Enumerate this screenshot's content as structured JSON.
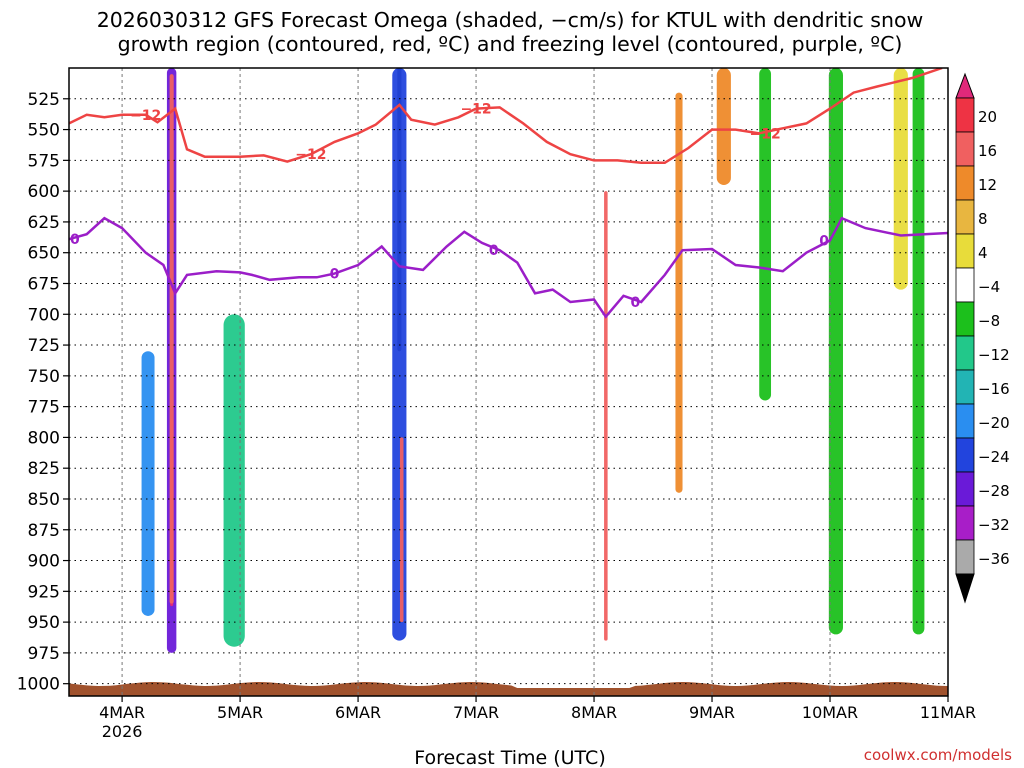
{
  "chart_data": {
    "type": "heatmap",
    "title_line1": "2026030312 GFS Forecast Omega (shaded, −cm/s) for KTUL with dendritic snow",
    "title_line2": "growth region (contoured, red, ºC) and freezing level (contoured, purple, ºC)",
    "xlabel": "Forecast Time (UTC)",
    "credit": "coolwx.com/models",
    "x_range_days": [
      3.55,
      11.0
    ],
    "x_ticks": [
      {
        "label": "4MAR",
        "day": 4
      },
      {
        "label": "5MAR",
        "day": 5
      },
      {
        "label": "6MAR",
        "day": 6
      },
      {
        "label": "7MAR",
        "day": 7
      },
      {
        "label": "8MAR",
        "day": 8
      },
      {
        "label": "9MAR",
        "day": 9
      },
      {
        "label": "10MAR",
        "day": 10
      },
      {
        "label": "11MAR",
        "day": 11
      }
    ],
    "year_label": "2026",
    "y_range_hpa": [
      500,
      1010
    ],
    "y_ticks": [
      525,
      550,
      575,
      600,
      625,
      650,
      675,
      700,
      725,
      750,
      775,
      800,
      825,
      850,
      875,
      900,
      925,
      950,
      975,
      1000
    ],
    "ground_color": "#a0522d",
    "colorbar": {
      "labels": [
        "20",
        "16",
        "12",
        "8",
        "4",
        "−4",
        "−8",
        "−12",
        "−16",
        "−20",
        "−24",
        "−28",
        "−32",
        "−36"
      ],
      "top_color": "#e0297a",
      "bottom_color": "#000000",
      "colors": [
        "#ee3344",
        "#f06060",
        "#ee8a2a",
        "#e8b640",
        "#e8dc3a",
        "#ffffff",
        "#1cc01c",
        "#22c88a",
        "#22b4b4",
        "#2a8ef0",
        "#2244dd",
        "#6a1ad8",
        "#a81ec8",
        "#aaaaaa"
      ]
    },
    "dgz_contour": {
      "color": "#ee4444",
      "label": "−12",
      "points": [
        [
          3.55,
          545
        ],
        [
          3.7,
          538
        ],
        [
          3.85,
          540
        ],
        [
          4.0,
          538
        ],
        [
          4.2,
          538
        ],
        [
          4.3,
          544
        ],
        [
          4.45,
          533
        ],
        [
          4.55,
          566
        ],
        [
          4.7,
          572
        ],
        [
          5.0,
          572
        ],
        [
          5.2,
          571
        ],
        [
          5.4,
          576
        ],
        [
          5.6,
          570
        ],
        [
          5.8,
          560
        ],
        [
          6.0,
          553
        ],
        [
          6.15,
          546
        ],
        [
          6.35,
          530
        ],
        [
          6.45,
          542
        ],
        [
          6.65,
          546
        ],
        [
          6.85,
          540
        ],
        [
          7.0,
          533
        ],
        [
          7.2,
          532
        ],
        [
          7.4,
          545
        ],
        [
          7.6,
          560
        ],
        [
          7.8,
          570
        ],
        [
          8.0,
          575
        ],
        [
          8.2,
          575
        ],
        [
          8.4,
          577
        ],
        [
          8.6,
          577
        ],
        [
          8.8,
          565
        ],
        [
          9.0,
          550
        ],
        [
          9.2,
          550
        ],
        [
          9.4,
          553
        ],
        [
          9.6,
          549
        ],
        [
          9.8,
          545
        ],
        [
          10.0,
          533
        ],
        [
          10.2,
          520
        ],
        [
          10.4,
          515
        ],
        [
          10.7,
          508
        ],
        [
          10.95,
          500
        ]
      ],
      "label_days": [
        4.2,
        5.6,
        7.0,
        9.45
      ]
    },
    "freezing_contour": {
      "color": "#9b1ec8",
      "label": "0",
      "points": [
        [
          3.55,
          639
        ],
        [
          3.7,
          635
        ],
        [
          3.85,
          622
        ],
        [
          4.0,
          630
        ],
        [
          4.2,
          650
        ],
        [
          4.35,
          660
        ],
        [
          4.45,
          683
        ],
        [
          4.55,
          668
        ],
        [
          4.8,
          665
        ],
        [
          5.0,
          666
        ],
        [
          5.1,
          668
        ],
        [
          5.25,
          672
        ],
        [
          5.5,
          670
        ],
        [
          5.65,
          670
        ],
        [
          5.8,
          667
        ],
        [
          6.0,
          660
        ],
        [
          6.2,
          645
        ],
        [
          6.35,
          661
        ],
        [
          6.55,
          664
        ],
        [
          6.75,
          645
        ],
        [
          6.9,
          633
        ],
        [
          7.05,
          642
        ],
        [
          7.2,
          648
        ],
        [
          7.35,
          658
        ],
        [
          7.5,
          683
        ],
        [
          7.65,
          680
        ],
        [
          7.8,
          690
        ],
        [
          8.0,
          688
        ],
        [
          8.1,
          702
        ],
        [
          8.25,
          685
        ],
        [
          8.4,
          690
        ],
        [
          8.6,
          668
        ],
        [
          8.75,
          648
        ],
        [
          9.0,
          647
        ],
        [
          9.2,
          660
        ],
        [
          9.4,
          662
        ],
        [
          9.6,
          665
        ],
        [
          9.8,
          650
        ],
        [
          10.0,
          640
        ],
        [
          10.1,
          622
        ],
        [
          10.3,
          630
        ],
        [
          10.6,
          636
        ],
        [
          11.0,
          634
        ]
      ],
      "label_days": [
        3.6,
        5.8,
        7.15,
        8.35,
        9.95
      ]
    },
    "omega_features": [
      {
        "day": 4.42,
        "p0": 500,
        "p1": 975,
        "width": 0.08,
        "value": -28,
        "core": 20
      },
      {
        "day": 4.42,
        "p0": 505,
        "p1": 935,
        "width": 0.035,
        "value": 16
      },
      {
        "day": 4.22,
        "p0": 730,
        "p1": 945,
        "width": 0.11,
        "value": -20
      },
      {
        "day": 4.95,
        "p0": 700,
        "p1": 970,
        "width": 0.18,
        "value": -12
      },
      {
        "day": 6.35,
        "p0": 500,
        "p1": 730,
        "width": 0.035,
        "value": -36
      },
      {
        "day": 6.35,
        "p0": 500,
        "p1": 965,
        "width": 0.12,
        "value": -24
      },
      {
        "day": 6.37,
        "p0": 800,
        "p1": 950,
        "width": 0.03,
        "value": 16
      },
      {
        "day": 8.1,
        "p0": 600,
        "p1": 965,
        "width": 0.03,
        "value": 16
      },
      {
        "day": 8.72,
        "p0": 520,
        "p1": 845,
        "width": 0.06,
        "value": 12
      },
      {
        "day": 9.1,
        "p0": 500,
        "p1": 595,
        "width": 0.12,
        "value": 12
      },
      {
        "day": 9.45,
        "p0": 500,
        "p1": 770,
        "width": 0.1,
        "value": -8
      },
      {
        "day": 10.05,
        "p0": 500,
        "p1": 960,
        "width": 0.12,
        "value": -8
      },
      {
        "day": 10.75,
        "p0": 500,
        "p1": 960,
        "width": 0.1,
        "value": -8
      },
      {
        "day": 10.6,
        "p0": 500,
        "p1": 680,
        "width": 0.12,
        "value": 4
      }
    ],
    "legend": "right-colorbar"
  }
}
